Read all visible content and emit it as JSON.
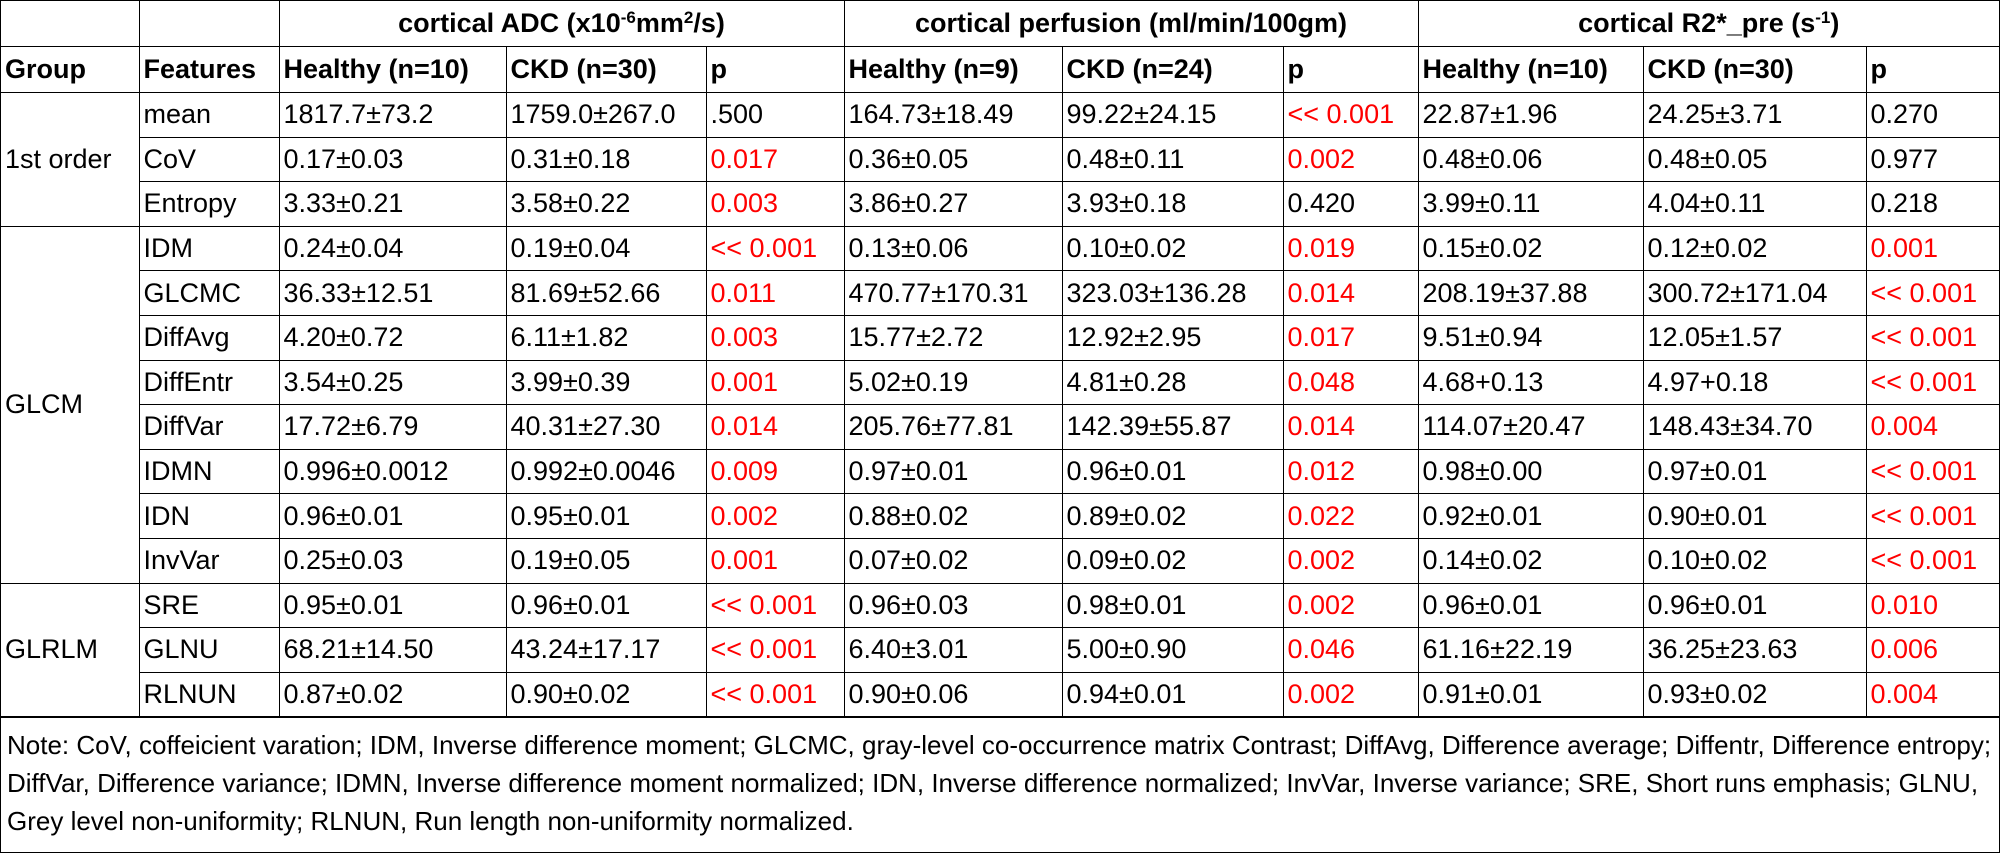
{
  "table": {
    "group_headers": [
      {
        "parts": [
          {
            "text": "cortical ADC (x10",
            "superscript": false
          },
          {
            "text": "-6",
            "superscript": true
          },
          {
            "text": "mm",
            "superscript": false
          },
          {
            "text": "2",
            "superscript": true
          },
          {
            "text": "/s)",
            "superscript": false
          }
        ]
      },
      {
        "parts": [
          {
            "text": "cortical perfusion (ml/min/100gm)",
            "superscript": false
          }
        ]
      },
      {
        "parts": [
          {
            "text": "cortical R2*_pre (s",
            "superscript": false
          },
          {
            "text": "-1",
            "superscript": true
          },
          {
            "text": ")",
            "superscript": false
          }
        ]
      }
    ],
    "columns": [
      "Group",
      "Features",
      "Healthy (n=10)",
      "CKD (n=30)",
      "p",
      "Healthy (n=9)",
      "CKD (n=24)",
      "p",
      "Healthy (n=10)",
      "CKD (n=30)",
      "p"
    ],
    "groups": [
      {
        "name": "1st order",
        "rows": [
          {
            "feature": "mean",
            "cells": [
              "1817.7±73.2",
              "1759.0±267.0",
              ".500",
              "164.73±18.49",
              "99.22±24.15",
              "<< 0.001",
              "22.87±1.96",
              "24.25±3.71",
              "0.270"
            ],
            "colors": [
              "#000000",
              "#000000",
              "#000000",
              "#000000",
              "#000000",
              "#ff0000",
              "#000000",
              "#000000",
              "#000000"
            ]
          },
          {
            "feature": "CoV",
            "cells": [
              "0.17±0.03",
              "0.31±0.18",
              "0.017",
              "0.36±0.05",
              "0.48±0.11",
              "0.002",
              "0.48±0.06",
              "0.48±0.05",
              "0.977"
            ],
            "colors": [
              "#000000",
              "#000000",
              "#ff0000",
              "#000000",
              "#000000",
              "#ff0000",
              "#000000",
              "#000000",
              "#000000"
            ]
          },
          {
            "feature": "Entropy",
            "cells": [
              "3.33±0.21",
              "3.58±0.22",
              "0.003",
              "3.86±0.27",
              "3.93±0.18",
              "0.420",
              "3.99±0.11",
              "4.04±0.11",
              "0.218"
            ],
            "colors": [
              "#000000",
              "#000000",
              "#ff0000",
              "#000000",
              "#000000",
              "#000000",
              "#000000",
              "#000000",
              "#000000"
            ]
          }
        ]
      },
      {
        "name": "GLCM",
        "rows": [
          {
            "feature": "IDM",
            "cells": [
              "0.24±0.04",
              "0.19±0.04",
              "<< 0.001",
              "0.13±0.06",
              "0.10±0.02",
              "0.019",
              "0.15±0.02",
              "0.12±0.02",
              "0.001"
            ],
            "colors": [
              "#000000",
              "#000000",
              "#ff0000",
              "#000000",
              "#000000",
              "#ff0000",
              "#000000",
              "#000000",
              "#ff0000"
            ]
          },
          {
            "feature": "GLCMC",
            "cells": [
              "36.33±12.51",
              "81.69±52.66",
              "0.011",
              "470.77±170.31",
              "323.03±136.28",
              "0.014",
              "208.19±37.88",
              "300.72±171.04",
              "<< 0.001"
            ],
            "colors": [
              "#000000",
              "#000000",
              "#ff0000",
              "#000000",
              "#000000",
              "#ff0000",
              "#000000",
              "#000000",
              "#ff0000"
            ]
          },
          {
            "feature": "DiffAvg",
            "cells": [
              "4.20±0.72",
              "6.11±1.82",
              "0.003",
              "15.77±2.72",
              "12.92±2.95",
              "0.017",
              "9.51±0.94",
              "12.05±1.57",
              "<< 0.001"
            ],
            "colors": [
              "#000000",
              "#000000",
              "#ff0000",
              "#000000",
              "#000000",
              "#ff0000",
              "#000000",
              "#000000",
              "#ff0000"
            ]
          },
          {
            "feature": "DiffEntr",
            "cells": [
              "3.54±0.25",
              "3.99±0.39",
              "0.001",
              "5.02±0.19",
              "4.81±0.28",
              "0.048",
              "4.68+0.13",
              "4.97+0.18",
              "<< 0.001"
            ],
            "colors": [
              "#000000",
              "#000000",
              "#ff0000",
              "#000000",
              "#000000",
              "#ff0000",
              "#000000",
              "#000000",
              "#ff0000"
            ]
          },
          {
            "feature": "DiffVar",
            "cells": [
              "17.72±6.79",
              "40.31±27.30",
              "0.014",
              "205.76±77.81",
              "142.39±55.87",
              "0.014",
              "114.07±20.47",
              "148.43±34.70",
              "0.004"
            ],
            "colors": [
              "#000000",
              "#000000",
              "#ff0000",
              "#000000",
              "#000000",
              "#ff0000",
              "#000000",
              "#000000",
              "#ff0000"
            ]
          },
          {
            "feature": "IDMN",
            "cells": [
              "0.996±0.0012",
              "0.992±0.0046",
              "0.009",
              "0.97±0.01",
              "0.96±0.01",
              "0.012",
              "0.98±0.00",
              "0.97±0.01",
              "<< 0.001"
            ],
            "colors": [
              "#000000",
              "#000000",
              "#ff0000",
              "#000000",
              "#000000",
              "#ff0000",
              "#000000",
              "#000000",
              "#ff0000"
            ]
          },
          {
            "feature": "IDN",
            "cells": [
              "0.96±0.01",
              "0.95±0.01",
              "0.002",
              "0.88±0.02",
              "0.89±0.02",
              "0.022",
              "0.92±0.01",
              "0.90±0.01",
              "<< 0.001"
            ],
            "colors": [
              "#000000",
              "#000000",
              "#ff0000",
              "#000000",
              "#000000",
              "#ff0000",
              "#000000",
              "#000000",
              "#ff0000"
            ]
          },
          {
            "feature": "InvVar",
            "cells": [
              "0.25±0.03",
              "0.19±0.05",
              "0.001",
              "0.07±0.02",
              "0.09±0.02",
              "0.002",
              "0.14±0.02",
              "0.10±0.02",
              "<< 0.001"
            ],
            "colors": [
              "#000000",
              "#000000",
              "#ff0000",
              "#000000",
              "#000000",
              "#ff0000",
              "#000000",
              "#000000",
              "#ff0000"
            ]
          }
        ]
      },
      {
        "name": "GLRLM",
        "rows": [
          {
            "feature": "SRE",
            "cells": [
              "0.95±0.01",
              "0.96±0.01",
              "<< 0.001",
              "0.96±0.03",
              "0.98±0.01",
              "0.002",
              "0.96±0.01",
              "0.96±0.01",
              "0.010"
            ],
            "colors": [
              "#000000",
              "#000000",
              "#ff0000",
              "#000000",
              "#000000",
              "#ff0000",
              "#000000",
              "#000000",
              "#ff0000"
            ]
          },
          {
            "feature": "GLNU",
            "cells": [
              "68.21±14.50",
              "43.24±17.17",
              "<< 0.001",
              "6.40±3.01",
              "5.00±0.90",
              "0.046",
              "61.16±22.19",
              "36.25±23.63",
              "0.006"
            ],
            "colors": [
              "#000000",
              "#000000",
              "#ff0000",
              "#000000",
              "#000000",
              "#ff0000",
              "#000000",
              "#000000",
              "#ff0000"
            ]
          },
          {
            "feature": "RLNUN",
            "cells": [
              "0.87±0.02",
              "0.90±0.02",
              "<< 0.001",
              "0.90±0.06",
              "0.94±0.01",
              "0.002",
              "0.91±0.01",
              "0.93±0.02",
              "0.004"
            ],
            "colors": [
              "#000000",
              "#000000",
              "#ff0000",
              "#000000",
              "#000000",
              "#ff0000",
              "#000000",
              "#000000",
              "#ff0000"
            ]
          }
        ]
      }
    ],
    "note": "Note: CoV, coffeicient varation; IDM, Inverse difference moment; GLCMC, gray-level co-occurrence matrix Contrast; DiffAvg, Difference average; Diffentr, Difference entropy; DiffVar, Difference variance; IDMN, Inverse difference moment normalized; IDN, Inverse difference normalized; InvVar, Inverse variance; SRE, Short runs emphasis; GLNU, Grey level non-uniformity; RLNUN, Run length non-uniformity normalized."
  }
}
